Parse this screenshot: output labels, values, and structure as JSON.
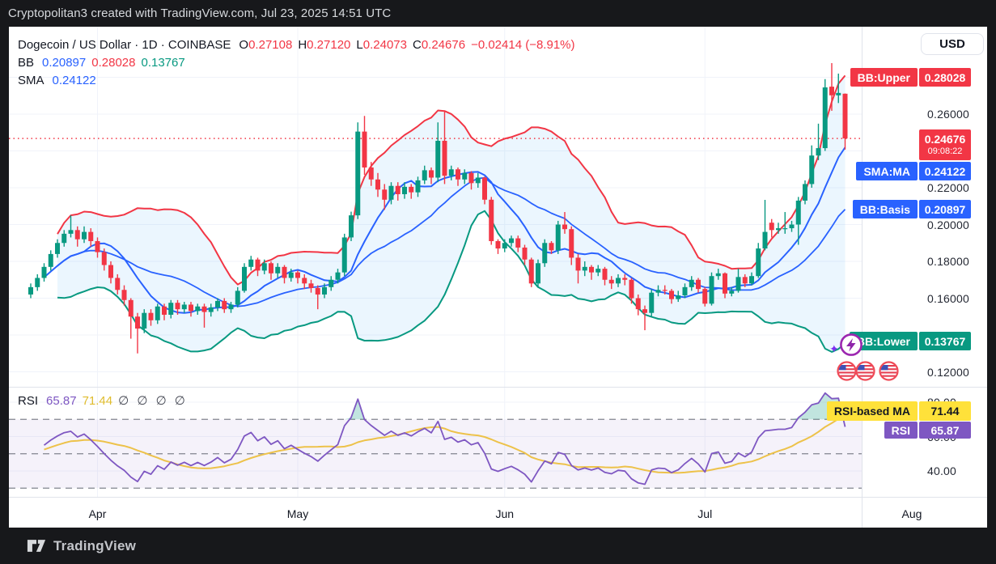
{
  "header": {
    "title": "Cryptopolitan3 created with TradingView.com, Jul 23, 2025 14:51 UTC"
  },
  "footer": {
    "brand": "TradingView"
  },
  "symbol_row": {
    "name": "Dogecoin / US Dollar · 1D · COINBASE",
    "o_label": "O",
    "o": "0.27108",
    "h_label": "H",
    "h": "0.27120",
    "l_label": "L",
    "l": "0.24073",
    "c_label": "C",
    "c": "0.24676",
    "change": "−0.02414 (−8.91%)"
  },
  "bb_row": {
    "label": "BB",
    "basis": "0.20897",
    "upper": "0.28028",
    "lower": "0.13767"
  },
  "sma_row": {
    "label": "SMA",
    "value": "0.24122"
  },
  "rsi_row": {
    "label": "RSI",
    "rsi": "65.87",
    "ma": "71.44",
    "empties": "∅ ∅ ∅ ∅"
  },
  "axis": {
    "currency": "USD",
    "price_ticks": [
      "0.26000",
      "0.22000",
      "0.20000",
      "0.18000",
      "0.16000",
      "0.12000"
    ],
    "rsi_ticks": [
      "80.00",
      "60.00",
      "40.00"
    ]
  },
  "badges": {
    "bb_upper": {
      "label": "BB:Upper",
      "value": "0.28028"
    },
    "price": {
      "value": "0.24676",
      "countdown": "09:08:22"
    },
    "sma": {
      "label": "SMA:MA",
      "value": "0.24122"
    },
    "bb_basis": {
      "label": "BB:Basis",
      "value": "0.20897"
    },
    "bb_lower": {
      "label": "BB:Lower",
      "value": "0.13767"
    },
    "rsi_ma": {
      "label": "RSI-based MA",
      "value": "71.44"
    },
    "rsi": {
      "label": "RSI",
      "value": "65.87"
    }
  },
  "colors": {
    "red": "#f23645",
    "green": "#089981",
    "blue": "#2962ff",
    "purple": "#7e57c2",
    "yellow_line": "#edc24a",
    "yellow_badge": "#ffe13a",
    "grid": "#f0f3fa",
    "border": "#e0e3eb",
    "text_dark": "#131722",
    "band_fill": "rgba(33,150,243,0.09)",
    "rsi_band_fill": "rgba(126,87,194,0.08)",
    "rsi_over_fill": "rgba(8,153,129,0.25)",
    "dashed": "#81858f"
  },
  "chart_data": {
    "type": "candlestick",
    "title": "Dogecoin / US Dollar",
    "interval": "1D",
    "exchange": "COINBASE",
    "last": {
      "open": 0.27108,
      "high": 0.2712,
      "low": 0.24073,
      "close": 0.24676,
      "change": -0.02414,
      "change_pct": -8.91
    },
    "current_price": 0.24676,
    "price_grid": [
      0.12,
      0.14,
      0.16,
      0.18,
      0.2,
      0.22,
      0.24,
      0.26,
      0.28
    ],
    "rsi_grid": [
      80,
      60,
      40
    ],
    "rsi_dashed": [
      70,
      50,
      30
    ],
    "indicators": {
      "bb": {
        "length": 20,
        "mult": 2,
        "basis": 0.20897,
        "upper": 0.28028,
        "lower": 0.13767
      },
      "sma": {
        "length": 9,
        "value": 0.24122
      },
      "rsi": {
        "length": 14,
        "ma_length": 14,
        "value": 65.87,
        "ma_value": 71.44,
        "overbought": 70,
        "oversold": 30
      }
    },
    "months": [
      {
        "label": "Apr",
        "i": 10
      },
      {
        "label": "May",
        "i": 40
      },
      {
        "label": "Jun",
        "i": 71
      },
      {
        "label": "Jul",
        "i": 101
      },
      {
        "label": "Aug",
        "i": 132
      }
    ],
    "candles": [
      [
        0.162,
        0.168,
        0.16,
        0.166
      ],
      [
        0.166,
        0.173,
        0.164,
        0.171
      ],
      [
        0.171,
        0.179,
        0.169,
        0.177
      ],
      [
        0.177,
        0.186,
        0.175,
        0.184
      ],
      [
        0.184,
        0.192,
        0.182,
        0.19
      ],
      [
        0.19,
        0.197,
        0.188,
        0.195
      ],
      [
        0.195,
        0.205,
        0.193,
        0.197
      ],
      [
        0.197,
        0.199,
        0.188,
        0.192
      ],
      [
        0.192,
        0.199,
        0.19,
        0.196
      ],
      [
        0.196,
        0.198,
        0.188,
        0.191
      ],
      [
        0.191,
        0.193,
        0.182,
        0.185
      ],
      [
        0.185,
        0.187,
        0.175,
        0.178
      ],
      [
        0.178,
        0.18,
        0.168,
        0.171
      ],
      [
        0.171,
        0.173,
        0.162,
        0.1645
      ],
      [
        0.1645,
        0.167,
        0.156,
        0.159
      ],
      [
        0.159,
        0.16,
        0.138,
        0.15
      ],
      [
        0.15,
        0.152,
        0.13,
        0.1435
      ],
      [
        0.1435,
        0.154,
        0.141,
        0.152
      ],
      [
        0.152,
        0.154,
        0.145,
        0.148
      ],
      [
        0.148,
        0.157,
        0.146,
        0.1555
      ],
      [
        0.1555,
        0.157,
        0.148,
        0.151
      ],
      [
        0.151,
        0.159,
        0.149,
        0.1575
      ],
      [
        0.1575,
        0.159,
        0.151,
        0.154
      ],
      [
        0.154,
        0.158,
        0.152,
        0.1565
      ],
      [
        0.1565,
        0.158,
        0.15,
        0.153
      ],
      [
        0.153,
        0.157,
        0.151,
        0.1555
      ],
      [
        0.1555,
        0.157,
        0.144,
        0.1525
      ],
      [
        0.1525,
        0.157,
        0.15,
        0.155
      ],
      [
        0.155,
        0.16,
        0.153,
        0.1585
      ],
      [
        0.1585,
        0.16,
        0.152,
        0.154
      ],
      [
        0.154,
        0.158,
        0.152,
        0.1565
      ],
      [
        0.1565,
        0.166,
        0.155,
        0.164
      ],
      [
        0.164,
        0.179,
        0.163,
        0.177
      ],
      [
        0.177,
        0.183,
        0.175,
        0.181
      ],
      [
        0.181,
        0.182,
        0.172,
        0.175
      ],
      [
        0.175,
        0.181,
        0.173,
        0.179
      ],
      [
        0.179,
        0.18,
        0.17,
        0.1735
      ],
      [
        0.1735,
        0.179,
        0.171,
        0.177
      ],
      [
        0.177,
        0.178,
        0.168,
        0.171
      ],
      [
        0.171,
        0.176,
        0.169,
        0.174
      ],
      [
        0.174,
        0.175,
        0.168,
        0.171
      ],
      [
        0.171,
        0.173,
        0.165,
        0.168
      ],
      [
        0.168,
        0.17,
        0.163,
        0.1655
      ],
      [
        0.1655,
        0.167,
        0.154,
        0.162
      ],
      [
        0.162,
        0.168,
        0.16,
        0.166
      ],
      [
        0.166,
        0.172,
        0.164,
        0.17
      ],
      [
        0.17,
        0.176,
        0.168,
        0.174
      ],
      [
        0.174,
        0.195,
        0.172,
        0.193
      ],
      [
        0.193,
        0.207,
        0.191,
        0.205
      ],
      [
        0.205,
        0.2555,
        0.203,
        0.2505
      ],
      [
        0.2505,
        0.259,
        0.227,
        0.231
      ],
      [
        0.231,
        0.234,
        0.221,
        0.2245
      ],
      [
        0.2245,
        0.228,
        0.215,
        0.219
      ],
      [
        0.219,
        0.222,
        0.208,
        0.2135
      ],
      [
        0.2135,
        0.223,
        0.211,
        0.221
      ],
      [
        0.221,
        0.223,
        0.213,
        0.2165
      ],
      [
        0.2165,
        0.223,
        0.214,
        0.2205
      ],
      [
        0.2205,
        0.222,
        0.214,
        0.2175
      ],
      [
        0.2175,
        0.226,
        0.215,
        0.224
      ],
      [
        0.224,
        0.232,
        0.222,
        0.2295
      ],
      [
        0.2295,
        0.231,
        0.222,
        0.2255
      ],
      [
        0.2255,
        0.2555,
        0.223,
        0.2455
      ],
      [
        0.2455,
        0.262,
        0.222,
        0.2265
      ],
      [
        0.2265,
        0.232,
        0.224,
        0.23
      ],
      [
        0.23,
        0.231,
        0.221,
        0.2245
      ],
      [
        0.2245,
        0.23,
        0.222,
        0.228
      ],
      [
        0.228,
        0.229,
        0.219,
        0.2225
      ],
      [
        0.2225,
        0.228,
        0.22,
        0.2255
      ],
      [
        0.2255,
        0.226,
        0.211,
        0.2135
      ],
      [
        0.2135,
        0.215,
        0.189,
        0.191
      ],
      [
        0.191,
        0.192,
        0.184,
        0.187
      ],
      [
        0.187,
        0.192,
        0.185,
        0.19
      ],
      [
        0.19,
        0.194,
        0.188,
        0.1925
      ],
      [
        0.1925,
        0.194,
        0.185,
        0.1875
      ],
      [
        0.1875,
        0.189,
        0.178,
        0.181
      ],
      [
        0.181,
        0.182,
        0.166,
        0.168
      ],
      [
        0.168,
        0.181,
        0.166,
        0.179
      ],
      [
        0.179,
        0.192,
        0.177,
        0.19
      ],
      [
        0.19,
        0.191,
        0.184,
        0.186
      ],
      [
        0.186,
        0.202,
        0.184,
        0.2
      ],
      [
        0.2,
        0.2068,
        0.195,
        0.1975
      ],
      [
        0.1975,
        0.199,
        0.178,
        0.182
      ],
      [
        0.182,
        0.184,
        0.168,
        0.175
      ],
      [
        0.175,
        0.18,
        0.172,
        0.177
      ],
      [
        0.177,
        0.178,
        0.17,
        0.174
      ],
      [
        0.174,
        0.178,
        0.172,
        0.176
      ],
      [
        0.176,
        0.177,
        0.167,
        0.17
      ],
      [
        0.17,
        0.172,
        0.165,
        0.168
      ],
      [
        0.168,
        0.173,
        0.166,
        0.171
      ],
      [
        0.171,
        0.173,
        0.167,
        0.17
      ],
      [
        0.17,
        0.171,
        0.157,
        0.16
      ],
      [
        0.16,
        0.162,
        0.1507,
        0.154
      ],
      [
        0.154,
        0.156,
        0.1426,
        0.152
      ],
      [
        0.152,
        0.165,
        0.15,
        0.163
      ],
      [
        0.163,
        0.167,
        0.161,
        0.1645
      ],
      [
        0.1645,
        0.167,
        0.162,
        0.164
      ],
      [
        0.164,
        0.165,
        0.157,
        0.1595
      ],
      [
        0.1595,
        0.164,
        0.158,
        0.1615
      ],
      [
        0.1615,
        0.168,
        0.16,
        0.166
      ],
      [
        0.166,
        0.172,
        0.164,
        0.17
      ],
      [
        0.17,
        0.171,
        0.163,
        0.165
      ],
      [
        0.165,
        0.166,
        0.1555,
        0.157
      ],
      [
        0.157,
        0.174,
        0.156,
        0.172
      ],
      [
        0.172,
        0.176,
        0.17,
        0.1735
      ],
      [
        0.1735,
        0.174,
        0.16,
        0.1625
      ],
      [
        0.1625,
        0.166,
        0.161,
        0.164
      ],
      [
        0.164,
        0.176,
        0.163,
        0.1715
      ],
      [
        0.1715,
        0.173,
        0.166,
        0.168
      ],
      [
        0.168,
        0.174,
        0.167,
        0.172
      ],
      [
        0.172,
        0.19,
        0.171,
        0.187
      ],
      [
        0.187,
        0.2134,
        0.186,
        0.196
      ],
      [
        0.201,
        0.203,
        0.193,
        0.197
      ],
      [
        0.197,
        0.201,
        0.195,
        0.198
      ],
      [
        0.198,
        0.2068,
        0.195,
        0.198
      ],
      [
        0.198,
        0.202,
        0.196,
        0.2
      ],
      [
        0.2,
        0.215,
        0.189,
        0.213
      ],
      [
        0.213,
        0.224,
        0.211,
        0.222
      ],
      [
        0.222,
        0.243,
        0.22,
        0.2375
      ],
      [
        0.2375,
        0.2548,
        0.235,
        0.2415
      ],
      [
        0.2415,
        0.279,
        0.24,
        0.2745
      ],
      [
        0.2749,
        0.2877,
        0.2618,
        0.2702
      ],
      [
        0.2702,
        0.282,
        0.266,
        0.2715
      ],
      [
        0.27108,
        0.2712,
        0.24073,
        0.24676
      ]
    ]
  }
}
